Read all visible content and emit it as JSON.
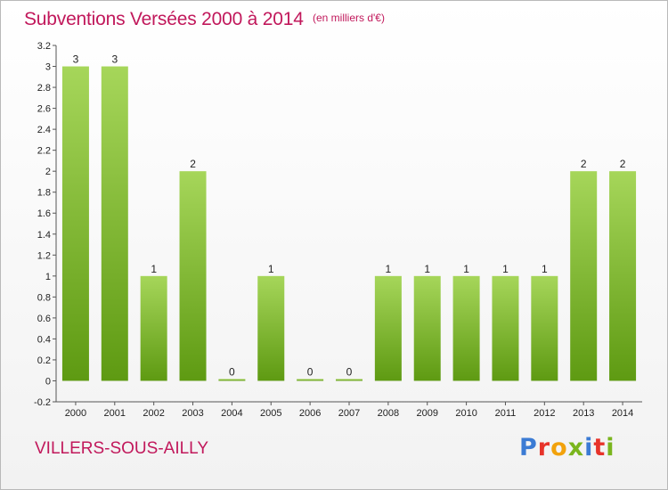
{
  "header": {
    "title": "Subventions Versées 2000 à 2014",
    "unit": "(en milliers d'€)"
  },
  "footer": {
    "commune": "VILLERS-SOUS-AILLY",
    "brand": "Proxiti"
  },
  "colors": {
    "title": "#c1185b",
    "bar_top": "#a6d65a",
    "bar_bottom": "#5e9a12",
    "brand_letters": [
      "#3b7bd4",
      "#e7332a",
      "#f2a20b",
      "#7ab51d",
      "#3b7bd4",
      "#e7332a",
      "#7ab51d"
    ]
  },
  "chart_data": {
    "type": "bar",
    "categories": [
      "2000",
      "2001",
      "2002",
      "2003",
      "2004",
      "2005",
      "2006",
      "2007",
      "2008",
      "2009",
      "2010",
      "2011",
      "2012",
      "2013",
      "2014"
    ],
    "values": [
      3,
      3,
      1,
      2,
      0,
      1,
      0,
      0,
      1,
      1,
      1,
      1,
      1,
      2,
      2
    ],
    "data_labels": [
      "3",
      "3",
      "1",
      "2",
      "0",
      "1",
      "0",
      "0",
      "1",
      "1",
      "1",
      "1",
      "1",
      "2",
      "2"
    ],
    "ylim": [
      -0.2,
      3.2
    ],
    "yticks": [
      -0.2,
      0,
      0.2,
      0.4,
      0.6,
      0.8,
      1,
      1.2,
      1.4,
      1.6,
      1.8,
      2,
      2.2,
      2.4,
      2.6,
      2.8,
      3,
      3.2
    ],
    "ytick_labels": [
      "-0.2",
      "0",
      "0.2",
      "0.4",
      "0.6",
      "0.8",
      "1",
      "1.2",
      "1.4",
      "1.6",
      "1.8",
      "2",
      "2.2",
      "2.4",
      "2.6",
      "2.8",
      "3",
      "3.2"
    ],
    "grid": false
  }
}
